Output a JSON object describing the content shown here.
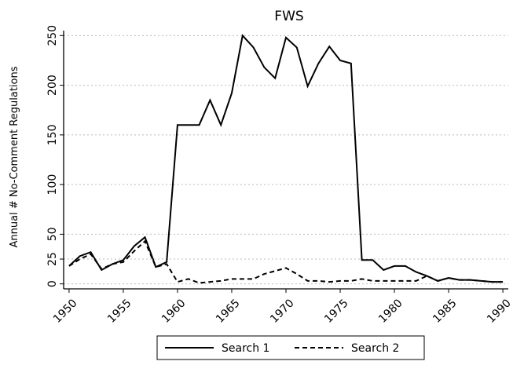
{
  "chart_data": {
    "type": "line",
    "title": "FWS",
    "y_label": "Annual # No-Comment Regulations",
    "x": [
      1950,
      1951,
      1952,
      1953,
      1954,
      1955,
      1956,
      1957,
      1958,
      1959,
      1960,
      1961,
      1962,
      1963,
      1964,
      1965,
      1966,
      1967,
      1968,
      1969,
      1970,
      1971,
      1972,
      1973,
      1974,
      1975,
      1976,
      1977,
      1978,
      1979,
      1980,
      1981,
      1982,
      1983,
      1984,
      1985,
      1986,
      1987,
      1988,
      1989,
      1990
    ],
    "series": [
      {
        "name": "Search 1",
        "color": "#000000",
        "dash": "solid",
        "values": [
          18,
          28,
          32,
          14,
          20,
          24,
          38,
          47,
          17,
          22,
          160,
          160,
          160,
          185,
          160,
          192,
          250,
          238,
          218,
          207,
          248,
          238,
          199,
          222,
          239,
          225,
          222,
          24,
          24,
          14,
          18,
          18,
          12,
          8,
          3,
          6,
          4,
          4,
          3,
          2,
          2
        ]
      },
      {
        "name": "Search 2",
        "color": "#000000",
        "dash": "dashed",
        "values": [
          18,
          25,
          30,
          15,
          20,
          22,
          33,
          43,
          17,
          20,
          2,
          5,
          1,
          2,
          3,
          5,
          5,
          5,
          10,
          13,
          16,
          10,
          3,
          3,
          2,
          3,
          3,
          5,
          3,
          3,
          3,
          3,
          3,
          8,
          3,
          6,
          4,
          4,
          3,
          2,
          2
        ]
      }
    ],
    "xlim": [
      1949.5,
      1990.5
    ],
    "xticks": [
      1950,
      1955,
      1960,
      1965,
      1970,
      1975,
      1980,
      1985,
      1990
    ],
    "ylim": [
      -5,
      255
    ],
    "yticks": [
      0,
      25,
      50,
      100,
      150,
      200,
      250
    ],
    "grid": true,
    "legend": "bottom"
  }
}
